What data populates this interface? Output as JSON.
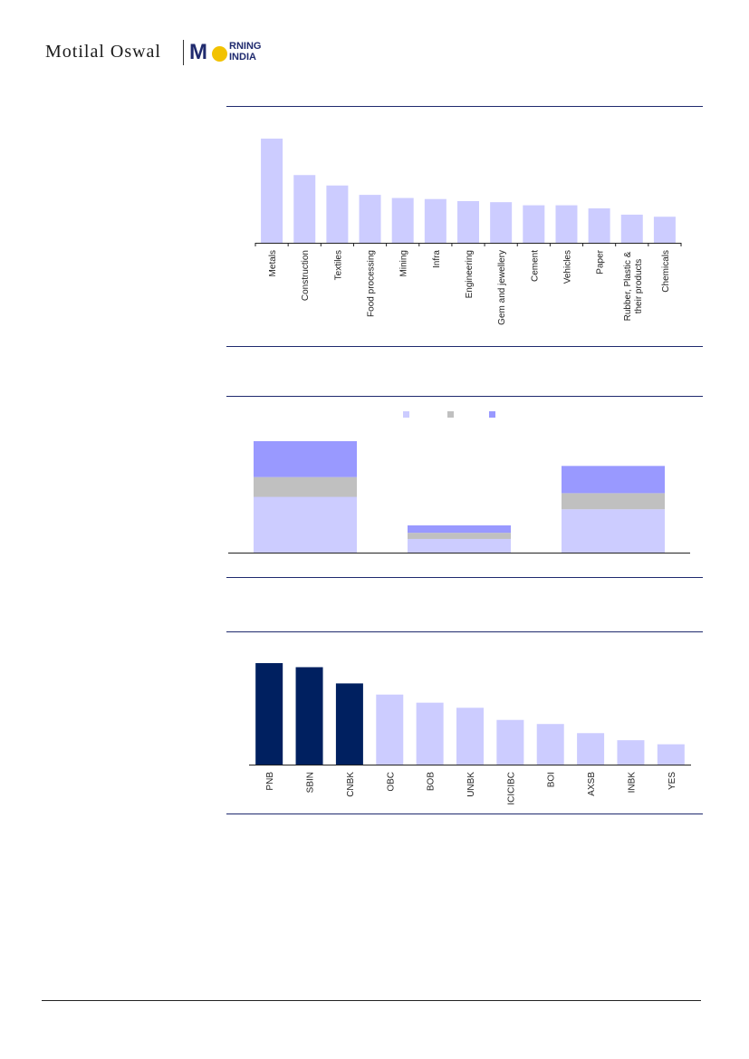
{
  "header": {
    "brand": "Motilal Oswal",
    "logo_line1": "RNING",
    "logo_line2": "INDIA"
  },
  "colors": {
    "light_bar": "#ccccff",
    "grey_bar": "#c0c0c0",
    "mid_bar": "#9999ff",
    "dark_bar": "#002060",
    "rule": "#1f2a6e"
  },
  "chart_data": [
    {
      "type": "bar",
      "categories": [
        "Metals",
        "Construction",
        "Textiles",
        "Food processing",
        "Mining",
        "Infra",
        "Engineering",
        "Gem and jewellery",
        "Cement",
        "Vehicles",
        "Paper",
        "Rubber, Plastic & their products",
        "Chemicals"
      ],
      "category_lines": [
        [
          "Metals"
        ],
        [
          "Construction"
        ],
        [
          "Textiles"
        ],
        [
          "Food processing"
        ],
        [
          "Mining"
        ],
        [
          "Infra"
        ],
        [
          "Engineering"
        ],
        [
          "Gem and jewellery"
        ],
        [
          "Cement"
        ],
        [
          "Vehicles"
        ],
        [
          "Paper"
        ],
        [
          "Rubber, Plastic &",
          "their products"
        ],
        [
          "Chemicals"
        ]
      ],
      "values": [
        100,
        65,
        55,
        46,
        43,
        42,
        40,
        39,
        36,
        36,
        33,
        27,
        25
      ],
      "ylim": [
        0,
        100
      ],
      "title": "",
      "xlabel": "",
      "ylabel": ""
    },
    {
      "type": "bar",
      "stacked": true,
      "categories": [
        "",
        "",
        ""
      ],
      "series": [
        {
          "values": [
            45,
            11,
            35
          ]
        },
        {
          "values": [
            16,
            5,
            13
          ]
        },
        {
          "values": [
            29,
            6,
            22
          ]
        }
      ],
      "legend": "top-center",
      "ylim": [
        0,
        95
      ],
      "title": "",
      "xlabel": "",
      "ylabel": ""
    },
    {
      "type": "bar",
      "categories": [
        "PNB",
        "SBIN",
        "CNBK",
        "OBC",
        "BOB",
        "UNBK",
        "ICICIBC",
        "BOI",
        "AXSB",
        "INBK",
        "YES"
      ],
      "values": [
        100,
        96,
        80,
        69,
        61,
        56,
        44,
        40,
        31,
        24,
        20
      ],
      "highlighted": [
        true,
        true,
        true,
        false,
        false,
        false,
        false,
        false,
        false,
        false,
        false
      ],
      "ylim": [
        0,
        100
      ],
      "title": "",
      "xlabel": "",
      "ylabel": ""
    }
  ]
}
